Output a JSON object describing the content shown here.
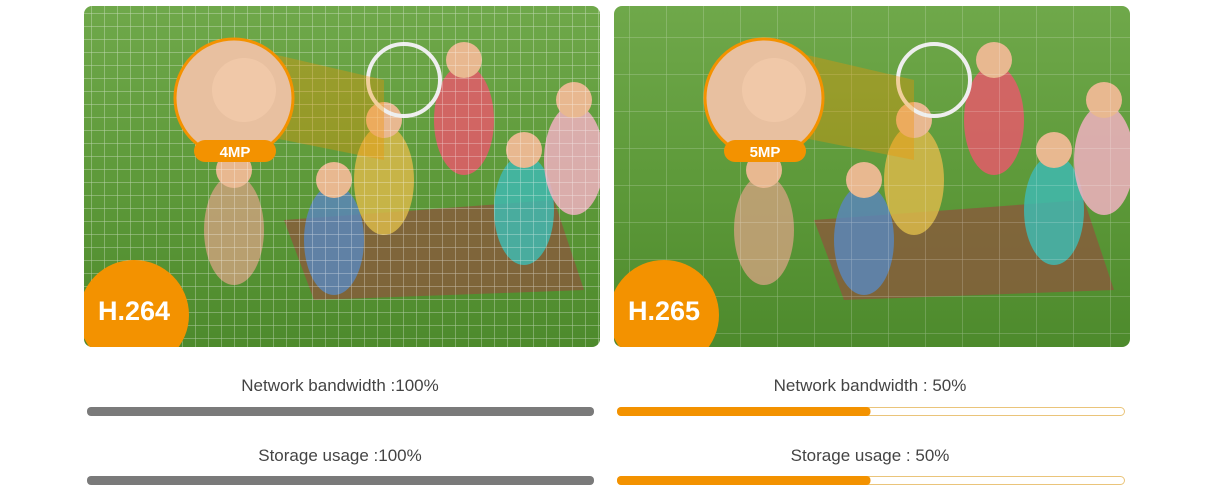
{
  "panels": [
    {
      "codec": "H.264",
      "resolution": "4MP",
      "metrics": [
        {
          "label": "Network bandwidth :100%",
          "value": 100
        },
        {
          "label": "Storage usage :100%",
          "value": 100
        }
      ]
    },
    {
      "codec": "H.265",
      "resolution": "5MP",
      "metrics": [
        {
          "label": "Network bandwidth : 50%",
          "value": 50
        },
        {
          "label": "Storage usage : 50%",
          "value": 50
        }
      ]
    }
  ]
}
